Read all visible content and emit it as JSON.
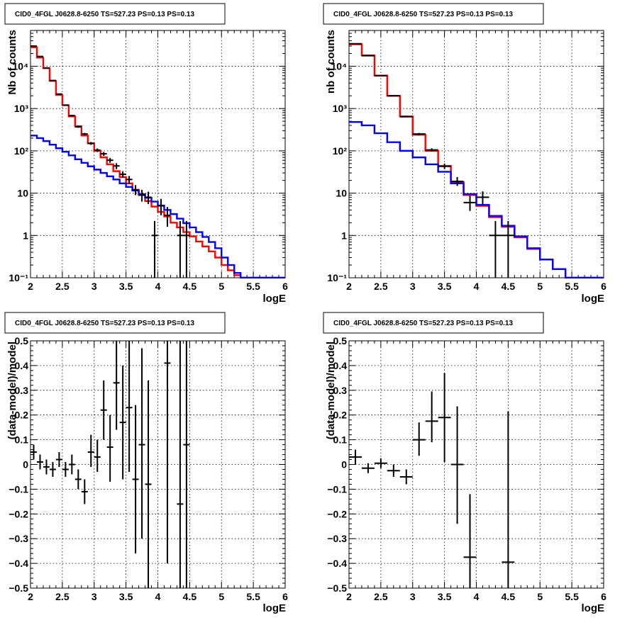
{
  "colors": {
    "total_model": "#ff0000",
    "background_model": "#0000ff",
    "data": "#000000"
  },
  "chart_data": [
    {
      "id": "panel-top-left",
      "type": "line",
      "title": "CID0_4FGL J0628.8-6250 TS=527.23 PS=0.13 PS=0.13",
      "xlabel": "logE",
      "ylabel": "Nb of counts",
      "xlim": [
        2,
        6
      ],
      "ylim": [
        0.1,
        70000
      ],
      "yscale": "log",
      "grid": true,
      "x_ticks": [
        2,
        2.5,
        3,
        3.5,
        4,
        4.5,
        5,
        5.5,
        6
      ],
      "x_tick_labels": [
        "2",
        "2.5",
        "3",
        "3.5",
        "4",
        "4.5",
        "5",
        "5.5",
        "6"
      ],
      "y_ticks": [
        0.1,
        1,
        10,
        100,
        1000,
        10000
      ],
      "y_tick_labels": [
        "10⁻¹",
        "1",
        "10",
        "10²",
        "10³",
        "10⁴"
      ],
      "bin_edges": [
        2.0,
        2.1,
        2.2,
        2.3,
        2.4,
        2.5,
        2.6,
        2.7,
        2.8,
        2.9,
        3.0,
        3.1,
        3.2,
        3.3,
        3.4,
        3.5,
        3.6,
        3.7,
        3.8,
        3.9,
        4.0,
        4.1,
        4.2,
        4.3,
        4.4,
        4.5,
        4.6,
        4.7,
        4.8,
        4.9,
        5.0,
        5.1,
        5.2,
        5.3,
        5.4,
        5.5,
        5.6,
        5.7,
        5.8,
        5.9,
        6.0
      ],
      "series": [
        {
          "style": "step",
          "color": "#ff0000",
          "values": [
            28000,
            16000,
            9000,
            4500,
            2100,
            1200,
            650,
            380,
            230,
            150,
            100,
            70,
            48,
            33,
            24,
            17,
            12,
            9,
            6.5,
            4.8,
            3.6,
            2.8,
            2.0,
            1.55,
            1.2,
            0.95,
            0.72,
            0.55,
            0.42,
            0.3,
            0.2,
            0.15,
            0.115,
            0.1,
            0.1,
            0.1,
            0.1,
            0.1,
            0.1,
            0.1
          ]
        },
        {
          "style": "step",
          "color": "#0000ff",
          "values": [
            230,
            200,
            170,
            140,
            115,
            95,
            78,
            63,
            52,
            43,
            36,
            30,
            25,
            21,
            17,
            14,
            11.5,
            9.5,
            7.8,
            6.3,
            5.1,
            4.0,
            3.2,
            2.5,
            1.95,
            1.55,
            1.2,
            0.92,
            0.7,
            0.5,
            0.3,
            0.2,
            0.13,
            0.1,
            0.1,
            0.1,
            0.1,
            0.1,
            0.1,
            0.1
          ]
        },
        {
          "style": "errorbar",
          "color": "#000000",
          "x": [
            2.05,
            2.15,
            2.25,
            2.35,
            2.45,
            2.55,
            2.65,
            2.75,
            2.85,
            2.95,
            3.05,
            3.15,
            3.25,
            3.35,
            3.45,
            3.55,
            3.65,
            3.75,
            3.85,
            3.95,
            4.05,
            4.15,
            4.35,
            4.45
          ],
          "xerr": 0.05,
          "y": [
            30000,
            17000,
            9100,
            4600,
            2200,
            1200,
            680,
            370,
            250,
            150,
            104,
            85,
            60,
            44,
            28,
            21,
            12,
            9,
            8,
            1,
            5,
            3,
            1,
            1
          ],
          "ylow": [
            29800,
            16800,
            8900,
            4500,
            2150,
            1170,
            650,
            350,
            235,
            138,
            94,
            76,
            52,
            37,
            23,
            16.5,
            9,
            6.3,
            5.5,
            0.1,
            3,
            1.6,
            0.1,
            0.1
          ],
          "yhigh": [
            30200,
            17200,
            9300,
            4700,
            2250,
            1230,
            710,
            390,
            265,
            162,
            114,
            94,
            68,
            51,
            33,
            25.5,
            15.5,
            12,
            10.8,
            2.2,
            7.3,
            4.7,
            2.2,
            2.2
          ]
        }
      ]
    },
    {
      "id": "panel-top-right",
      "type": "line",
      "title": "CID0_4FGL J0628.8-6250 TS=527.23 PS=0.13 PS=0.13",
      "xlabel": "logE",
      "ylabel": "nb of counts",
      "xlim": [
        2,
        6
      ],
      "ylim": [
        0.1,
        70000
      ],
      "yscale": "log",
      "grid": true,
      "x_ticks": [
        2,
        2.5,
        3,
        3.5,
        4,
        4.5,
        5,
        5.5,
        6
      ],
      "x_tick_labels": [
        "2",
        "2.5",
        "3",
        "3.5",
        "4",
        "4.5",
        "5",
        "5.5",
        "6"
      ],
      "y_ticks": [
        0.1,
        1,
        10,
        100,
        1000,
        10000
      ],
      "y_tick_labels": [
        "10⁻¹",
        "1",
        "10",
        "10²",
        "10³",
        "10⁴"
      ],
      "bin_edges": [
        2.0,
        2.2,
        2.4,
        2.6,
        2.8,
        3.0,
        3.2,
        3.4,
        3.6,
        3.8,
        4.0,
        4.2,
        4.4,
        4.6,
        4.8,
        5.0,
        5.2,
        5.4,
        5.6,
        5.8,
        6.0
      ],
      "series": [
        {
          "style": "step",
          "color": "#ff0000",
          "values": [
            33000,
            18000,
            6000,
            2000,
            650,
            240,
            100,
            44,
            18,
            9,
            5,
            2.7,
            1.6,
            0.9,
            0.48,
            0.27,
            0.16,
            0.1,
            0.1,
            0.1
          ]
        },
        {
          "style": "step",
          "color": "#0000ff",
          "values": [
            480,
            400,
            260,
            160,
            100,
            70,
            48,
            32,
            17,
            9.5,
            5.3,
            2.9,
            1.7,
            0.95,
            0.5,
            0.27,
            0.16,
            0.1,
            0.1,
            0.1
          ]
        },
        {
          "style": "errorbar",
          "color": "#000000",
          "x": [
            2.1,
            2.3,
            2.5,
            2.7,
            2.9,
            3.1,
            3.3,
            3.5,
            3.7,
            3.9,
            4.1,
            4.3,
            4.5
          ],
          "xerr": 0.1,
          "y": [
            34000,
            17700,
            6000,
            2000,
            640,
            250,
            105,
            43,
            19,
            6,
            8,
            1,
            1
          ],
          "ylow": [
            33800,
            17500,
            5900,
            1950,
            620,
            235,
            96,
            37,
            14.8,
            3.8,
            5.3,
            0.1,
            0.1
          ],
          "yhigh": [
            34200,
            17900,
            6100,
            2050,
            660,
            265,
            115,
            50,
            24,
            8.6,
            11,
            2.2,
            2.2
          ]
        }
      ]
    },
    {
      "id": "panel-bottom-left",
      "type": "scatter",
      "title": "CID0_4FGL J0628.8-6250 TS=527.23 PS=0.13 PS=0.13",
      "xlabel": "logE",
      "ylabel": "(data-model)/model",
      "xlim": [
        2,
        6
      ],
      "ylim": [
        -0.5,
        0.5
      ],
      "grid": true,
      "x_ticks": [
        2,
        2.5,
        3,
        3.5,
        4,
        4.5,
        5,
        5.5,
        6
      ],
      "x_tick_labels": [
        "2",
        "2.5",
        "3",
        "3.5",
        "4",
        "4.5",
        "5",
        "5.5",
        "6"
      ],
      "y_ticks": [
        -0.5,
        -0.4,
        -0.3,
        -0.2,
        -0.1,
        0,
        0.1,
        0.2,
        0.3,
        0.4,
        0.5
      ],
      "y_tick_labels": [
        "−0.5",
        "−0.4",
        "−0.3",
        "−0.2",
        "−0.1",
        "0",
        "0.1",
        "0.2",
        "0.3",
        "0.4",
        "0.5"
      ],
      "series": [
        {
          "style": "errorbar",
          "color": "#000000",
          "x": [
            2.05,
            2.15,
            2.25,
            2.35,
            2.45,
            2.55,
            2.65,
            2.75,
            2.85,
            2.95,
            3.05,
            3.15,
            3.25,
            3.35,
            3.45,
            3.55,
            3.65,
            3.75,
            3.85,
            4.15,
            4.35,
            4.45
          ],
          "xerr": 0.05,
          "y": [
            0.05,
            0.01,
            -0.01,
            -0.02,
            0.02,
            -0.02,
            0.0,
            -0.06,
            -0.11,
            0.05,
            0.03,
            0.22,
            0.07,
            0.33,
            0.17,
            0.23,
            -0.06,
            0.08,
            -0.08,
            0.41,
            -0.16,
            0.08
          ],
          "ylow": [
            0.02,
            -0.02,
            -0.04,
            -0.05,
            -0.01,
            -0.05,
            -0.04,
            -0.1,
            -0.16,
            -0.01,
            -0.03,
            0.1,
            -0.07,
            0.14,
            -0.06,
            -0.03,
            -0.36,
            -0.3,
            -0.5,
            -0.4,
            -0.5,
            -0.5
          ],
          "yhigh": [
            0.08,
            0.04,
            0.02,
            0.01,
            0.05,
            0.01,
            0.04,
            -0.02,
            -0.06,
            0.12,
            0.1,
            0.34,
            0.2,
            0.5,
            0.4,
            0.5,
            0.24,
            0.47,
            0.34,
            0.5,
            0.5,
            0.5
          ]
        }
      ]
    },
    {
      "id": "panel-bottom-right",
      "type": "scatter",
      "title": "CID0_4FGL J0628.8-6250 TS=527.23 PS=0.13 PS=0.13",
      "xlabel": "logE",
      "ylabel": "(data-model)/model",
      "xlim": [
        2,
        6
      ],
      "ylim": [
        -0.5,
        0.5
      ],
      "grid": true,
      "x_ticks": [
        2,
        2.5,
        3,
        3.5,
        4,
        4.5,
        5,
        5.5,
        6
      ],
      "x_tick_labels": [
        "2",
        "2.5",
        "3",
        "3.5",
        "4",
        "4.5",
        "5",
        "5.5",
        "6"
      ],
      "y_ticks": [
        -0.5,
        -0.4,
        -0.3,
        -0.2,
        -0.1,
        0,
        0.1,
        0.2,
        0.3,
        0.4,
        0.5
      ],
      "y_tick_labels": [
        "−0.5",
        "−0.4",
        "−0.3",
        "−0.2",
        "−0.1",
        "0",
        "0.1",
        "0.2",
        "0.3",
        "0.4",
        "0.5"
      ],
      "series": [
        {
          "style": "errorbar",
          "color": "#000000",
          "x": [
            2.1,
            2.3,
            2.5,
            2.7,
            2.9,
            3.1,
            3.3,
            3.5,
            3.7,
            3.9,
            4.5
          ],
          "xerr": 0.1,
          "y": [
            0.03,
            -0.015,
            0.005,
            -0.025,
            -0.05,
            0.1,
            0.175,
            0.19,
            0.0,
            -0.375,
            -0.395
          ],
          "ylow": [
            0.0,
            -0.035,
            -0.015,
            -0.05,
            -0.08,
            0.035,
            0.09,
            0.01,
            -0.24,
            -0.5,
            -0.5
          ],
          "yhigh": [
            0.06,
            0.005,
            0.025,
            0.0,
            -0.02,
            0.17,
            0.295,
            0.37,
            0.235,
            -0.12,
            0.215
          ]
        }
      ]
    }
  ]
}
